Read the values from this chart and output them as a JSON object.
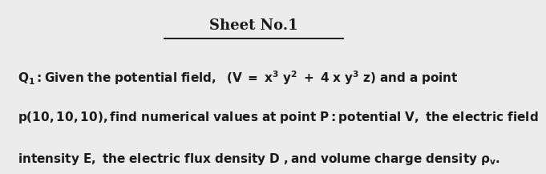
{
  "background_color": "#ececec",
  "title": "Sheet No.1",
  "title_fontsize": 13,
  "body_fontsize": 11,
  "text_color": "#1a1a1a",
  "line1": "Q$_1$:Given the potential field,  (V = x$^3$ y$^2$ + 4 x y$^3$ z) and a point",
  "line2": "p(10,10,10),find numerical values at point P:potential V, the electric field",
  "line3_main": "intensity E, the electric flux density D ,and volume charge density ρ",
  "line3_sub": "v",
  "line3_end": "."
}
